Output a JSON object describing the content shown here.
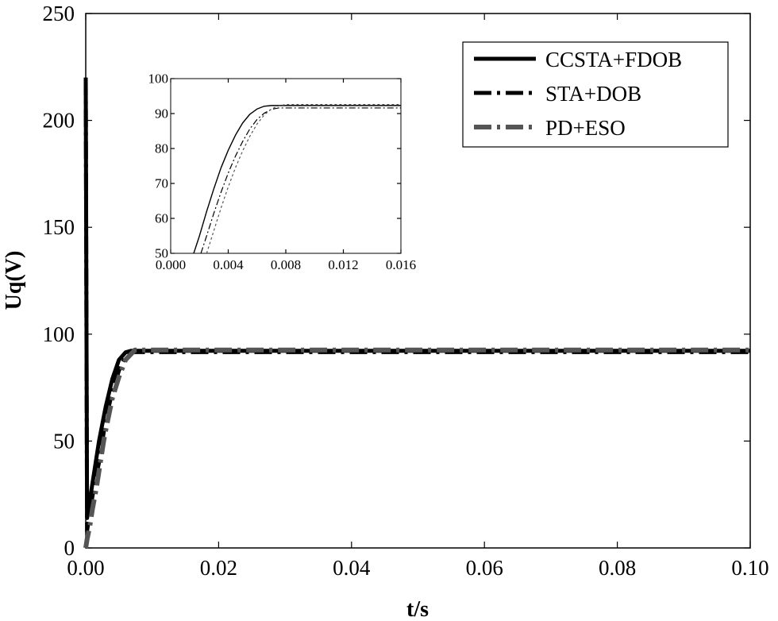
{
  "chart_data": [
    {
      "id": "main",
      "type": "line",
      "title": "",
      "xlabel": "t/s",
      "ylabel": "Uq(V)",
      "xlim": [
        0,
        0.1
      ],
      "ylim": [
        0,
        250
      ],
      "xticks": [
        "0.00",
        "0.02",
        "0.04",
        "0.06",
        "0.08",
        "0.10"
      ],
      "xtick_values": [
        0,
        0.02,
        0.04,
        0.06,
        0.08,
        0.1
      ],
      "yticks": [
        "0",
        "50",
        "100",
        "150",
        "200",
        "250"
      ],
      "ytick_values": [
        0,
        50,
        100,
        150,
        200,
        250
      ],
      "legend_position": "top-right",
      "series": [
        {
          "name": "CCSTA+FDOB",
          "style": "solid",
          "color": "#000000",
          "x": [
            0,
            0.0002,
            0.0006,
            0.001,
            0.0016,
            0.002,
            0.003,
            0.004,
            0.005,
            0.006,
            0.0068,
            0.008,
            0.01,
            0.02,
            0.04,
            0.06,
            0.08,
            0.1
          ],
          "y": [
            220,
            14,
            22,
            30,
            42,
            50,
            66,
            79,
            88,
            91.5,
            92.2,
            92.2,
            92.2,
            92.2,
            92.2,
            92.2,
            92.2,
            92.2
          ]
        },
        {
          "name": "STA+DOB",
          "style": "dashdot",
          "color": "#000000",
          "x": [
            0,
            0.0002,
            0.0006,
            0.001,
            0.0016,
            0.002,
            0.0025,
            0.003,
            0.004,
            0.005,
            0.006,
            0.0072,
            0.008,
            0.01,
            0.02,
            0.04,
            0.06,
            0.08,
            0.1
          ],
          "y": [
            220,
            8,
            16,
            24,
            34,
            40,
            50,
            60,
            73,
            83,
            89.5,
            91.6,
            91.6,
            91.6,
            91.6,
            91.6,
            91.6,
            91.6,
            91.6
          ]
        },
        {
          "name": "PD+ESO",
          "style": "dashdot",
          "color": "#555555",
          "x": [
            0,
            0.0002,
            0.0006,
            0.001,
            0.0016,
            0.002,
            0.0027,
            0.0032,
            0.004,
            0.005,
            0.006,
            0.0074,
            0.008,
            0.01,
            0.02,
            0.04,
            0.06,
            0.08,
            0.1
          ],
          "y": [
            0,
            4,
            10,
            18,
            28,
            36,
            50,
            58,
            70,
            80,
            88,
            92.6,
            92.6,
            92.6,
            92.6,
            92.6,
            92.6,
            92.6,
            92.6
          ]
        }
      ]
    },
    {
      "id": "inset",
      "type": "line",
      "title": "",
      "xlabel": "",
      "ylabel": "",
      "xlim": [
        0,
        0.016
      ],
      "ylim": [
        50,
        100
      ],
      "xticks": [
        "0.000",
        "0.004",
        "0.008",
        "0.012",
        "0.016"
      ],
      "xtick_values": [
        0,
        0.004,
        0.008,
        0.012,
        0.016
      ],
      "yticks": [
        "50",
        "60",
        "70",
        "80",
        "90",
        "100"
      ],
      "ytick_values": [
        50,
        60,
        70,
        80,
        90,
        100
      ],
      "series": [
        {
          "name": "CCSTA+FDOB",
          "style": "solid",
          "color": "#000000",
          "x": [
            0.0016,
            0.002,
            0.0025,
            0.003,
            0.0035,
            0.004,
            0.0045,
            0.005,
            0.0055,
            0.006,
            0.0065,
            0.007,
            0.008,
            0.01,
            0.012,
            0.014,
            0.016
          ],
          "y": [
            50,
            55,
            62,
            68.5,
            74.5,
            79.5,
            83.8,
            87.3,
            89.8,
            91.3,
            92.1,
            92.3,
            92.3,
            92.3,
            92.3,
            92.3,
            92.3
          ]
        },
        {
          "name": "STA+DOB",
          "style": "dashdot",
          "color": "#000000",
          "x": [
            0.0021,
            0.0025,
            0.003,
            0.0035,
            0.004,
            0.0045,
            0.005,
            0.0055,
            0.006,
            0.0065,
            0.007,
            0.0075,
            0.008,
            0.01,
            0.012,
            0.014,
            0.016
          ],
          "y": [
            50,
            55,
            61.5,
            67.5,
            73,
            77.8,
            82,
            85.6,
            88.3,
            90.1,
            91.2,
            91.6,
            91.6,
            91.6,
            91.6,
            91.6,
            91.6
          ]
        },
        {
          "name": "PD+ESO",
          "style": "dashdot",
          "color": "#555555",
          "x": [
            0.0025,
            0.003,
            0.0035,
            0.004,
            0.0045,
            0.005,
            0.0055,
            0.006,
            0.0065,
            0.007,
            0.0075,
            0.008,
            0.01,
            0.012,
            0.014,
            0.016
          ],
          "y": [
            50,
            56.5,
            63,
            69,
            74.5,
            79.3,
            83.5,
            87,
            89.6,
            91.3,
            92.2,
            92.6,
            92.6,
            92.6,
            92.6,
            92.6
          ]
        }
      ]
    }
  ]
}
